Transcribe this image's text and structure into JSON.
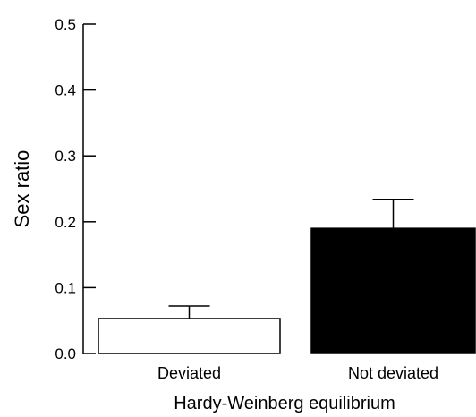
{
  "chart_data": {
    "type": "bar",
    "title": "",
    "xlabel": "Hardy-Weinberg equilibrium",
    "ylabel": "Sex ratio",
    "ylim": [
      0,
      0.5
    ],
    "yticks": [
      "0.0",
      "0.1",
      "0.2",
      "0.3",
      "0.4",
      "0.5"
    ],
    "categories": [
      "Deviated",
      "Not deviated"
    ],
    "values": [
      0.053,
      0.19
    ],
    "error_upper": [
      0.072,
      0.234
    ],
    "bar_fills": [
      "#ffffff",
      "#000000"
    ],
    "grid": false,
    "legend": "none"
  }
}
